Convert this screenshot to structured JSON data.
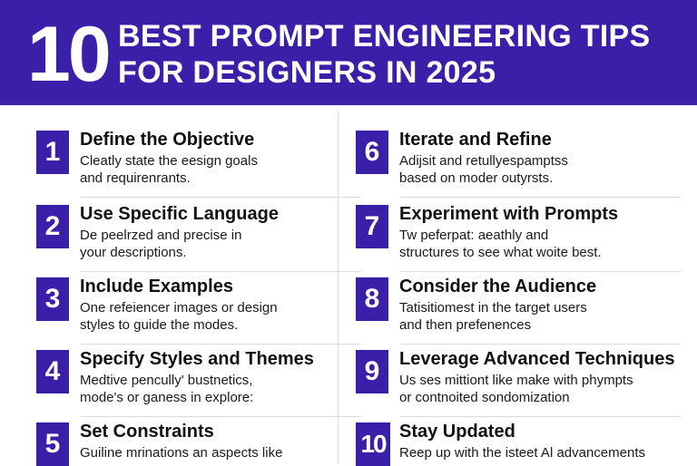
{
  "header": {
    "number": "10",
    "title_line1": "BEST PROMPT ENGINEERING TIPS",
    "title_line2": "FOR DESIGNERS IN 2025"
  },
  "tips": [
    {
      "number": "1",
      "title": "Define the Objective",
      "desc_line1": "Cleatly state the eesign goals",
      "desc_line2": "and requirenrants."
    },
    {
      "number": "2",
      "title": "Use Specific Language",
      "desc_line1": "De peelrzed and precise in",
      "desc_line2": "your descriptions."
    },
    {
      "number": "3",
      "title": "Include Examples",
      "desc_line1": "One refeiencer images or design",
      "desc_line2": "styles to guide the modes."
    },
    {
      "number": "4",
      "title": "Specify Styles and Themes",
      "desc_line1": "Medtive pencully' bustnetics,",
      "desc_line2": "mode's or ganess in explore:"
    },
    {
      "number": "5",
      "title": "Set Constraints",
      "desc_line1": "Guiline mrinations an aspects like",
      "desc_line2": ""
    },
    {
      "number": "6",
      "title": "Iterate and Refine",
      "desc_line1": "Adijsit and retullyespamptss",
      "desc_line2": "based on moder outyrsts."
    },
    {
      "number": "7",
      "title": "Experiment with Prompts",
      "desc_line1": "Tw peferpat: aeathly and",
      "desc_line2": "structures to see what woite best."
    },
    {
      "number": "8",
      "title": "Consider the Audience",
      "desc_line1": "Tatisitiomest in the target users",
      "desc_line2": "and then prefenences"
    },
    {
      "number": "9",
      "title": "Leverage Advanced Techniques",
      "desc_line1": "Us ses mittiont like make with phympts",
      "desc_line2": "or contnoited sondomization"
    },
    {
      "number": "10",
      "title": "Stay Updated",
      "desc_line1": "Reep up with the isteet Al advancements",
      "desc_line2": ""
    }
  ],
  "colors": {
    "brand": "#3a1fa8",
    "background": "#ffffff",
    "divider": "#dcdce4"
  }
}
